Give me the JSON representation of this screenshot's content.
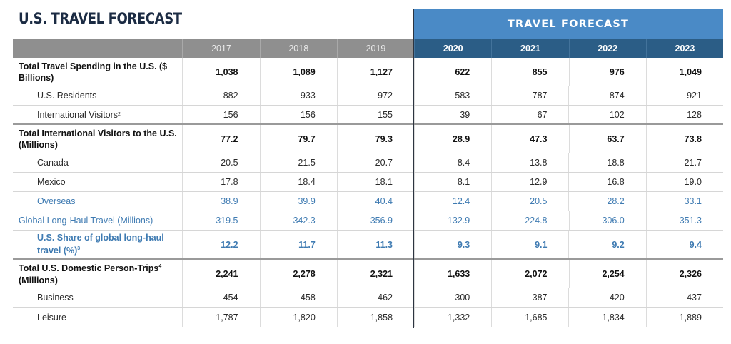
{
  "title": "U.S. TRAVEL FORECAST",
  "banner": "TRAVEL FORECAST",
  "years": [
    "2017",
    "2018",
    "2019",
    "2020",
    "2021",
    "2022",
    "2023"
  ],
  "rows": [
    {
      "label": "Total Travel Spending in the U.S. ($ Billions)",
      "values": [
        "1,038",
        "1,089",
        "1,127",
        "622",
        "855",
        "976",
        "1,049"
      ]
    },
    {
      "label": "U.S. Residents",
      "values": [
        "882",
        "933",
        "972",
        "583",
        "787",
        "874",
        "921"
      ]
    },
    {
      "label": "International Visitors",
      "sup": "2",
      "values": [
        "156",
        "156",
        "155",
        "39",
        "67",
        "102",
        "128"
      ]
    },
    {
      "label": "Total International Visitors to the U.S. (Millions)",
      "values": [
        "77.2",
        "79.7",
        "79.3",
        "28.9",
        "47.3",
        "63.7",
        "73.8"
      ]
    },
    {
      "label": "Canada",
      "values": [
        "20.5",
        "21.5",
        "20.7",
        "8.4",
        "13.8",
        "18.8",
        "21.7"
      ]
    },
    {
      "label": "Mexico",
      "values": [
        "17.8",
        "18.4",
        "18.1",
        "8.1",
        "12.9",
        "16.8",
        "19.0"
      ]
    },
    {
      "label": "Overseas",
      "values": [
        "38.9",
        "39.9",
        "40.4",
        "12.4",
        "20.5",
        "28.2",
        "33.1"
      ]
    },
    {
      "label": "Global Long-Haul Travel (Millions)",
      "values": [
        "319.5",
        "342.3",
        "356.9",
        "132.9",
        "224.8",
        "306.0",
        "351.3"
      ]
    },
    {
      "label": "U.S. Share of global long-haul travel (%)",
      "sup": "3",
      "values": [
        "12.2",
        "11.7",
        "11.3",
        "9.3",
        "9.1",
        "9.2",
        "9.4"
      ]
    },
    {
      "label": "Total U.S. Domestic Person-Trips",
      "sup": "4",
      "label_suffix": " (Millions)",
      "values": [
        "2,241",
        "2,278",
        "2,321",
        "1,633",
        "2,072",
        "2,254",
        "2,326"
      ]
    },
    {
      "label": "Business",
      "values": [
        "454",
        "458",
        "462",
        "300",
        "387",
        "420",
        "437"
      ]
    },
    {
      "label": "Leisure",
      "values": [
        "1,787",
        "1,820",
        "1,858",
        "1,332",
        "1,685",
        "1,834",
        "1,889"
      ]
    }
  ],
  "colors": {
    "title": "#1b2b43",
    "banner": "#4a8ac6",
    "forecast_header": "#2b5d86",
    "actual_header": "#8f8f8f",
    "accent_text": "#3f7bb2"
  }
}
